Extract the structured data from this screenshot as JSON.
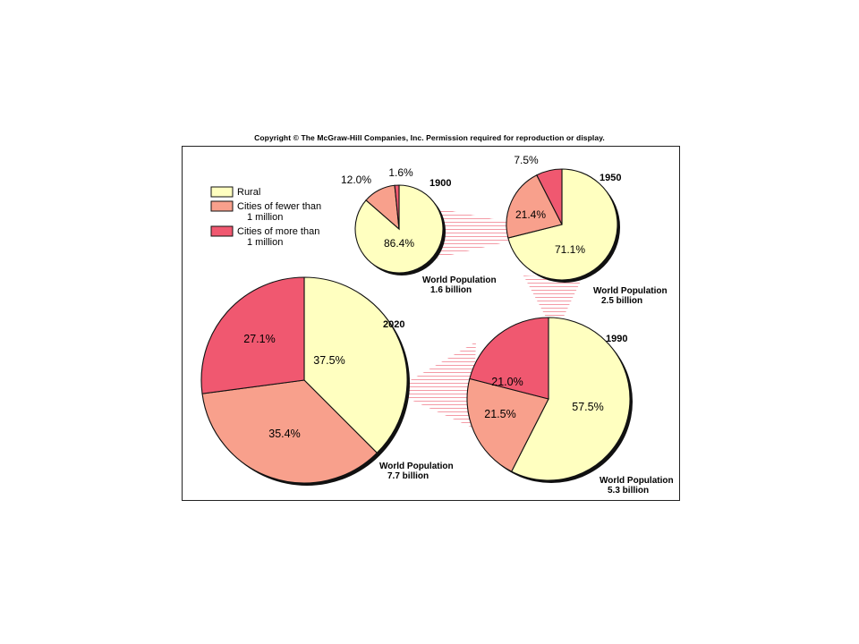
{
  "copyright": "Copyright © The McGraw-Hill Companies, Inc. Permission required for reproduction or display.",
  "colors": {
    "rural": "#ffffc0",
    "small_cities": "#f8a08c",
    "large_cities": "#f05870",
    "connector": "#f07080"
  },
  "legend": [
    {
      "key": "rural",
      "lines": [
        "Rural"
      ]
    },
    {
      "key": "small_cities",
      "lines": [
        "Cities of fewer than",
        "1 million"
      ]
    },
    {
      "key": "large_cities",
      "lines": [
        "Cities of more than",
        "1 million"
      ]
    }
  ],
  "chart_data": {
    "type": "pie",
    "legend_placement": "top-left",
    "categories": [
      "Rural",
      "Cities of fewer than 1 million",
      "Cities of more than 1 million"
    ],
    "pies": [
      {
        "year": "1900",
        "population_label": [
          "World Population",
          "1.6 billion"
        ],
        "population_billion": 1.6,
        "values": [
          86.4,
          12.0,
          1.6
        ],
        "labels": [
          "86.4%",
          "12.0%",
          "1.6%"
        ]
      },
      {
        "year": "1950",
        "population_label": [
          "World Population",
          "2.5 billion"
        ],
        "population_billion": 2.5,
        "values": [
          71.1,
          21.4,
          7.5
        ],
        "labels": [
          "71.1%",
          "21.4%",
          "7.5%"
        ]
      },
      {
        "year": "1990",
        "population_label": [
          "World Population",
          "5.3 billion"
        ],
        "population_billion": 5.3,
        "values": [
          57.5,
          21.5,
          21.0
        ],
        "labels": [
          "57.5%",
          "21.5%",
          "21.0%"
        ]
      },
      {
        "year": "2020",
        "population_label": [
          "World Population",
          "7.7 billion"
        ],
        "population_billion": 7.7,
        "values": [
          37.5,
          35.4,
          27.1
        ],
        "labels": [
          "37.5%",
          "35.4%",
          "27.1%"
        ]
      }
    ]
  }
}
